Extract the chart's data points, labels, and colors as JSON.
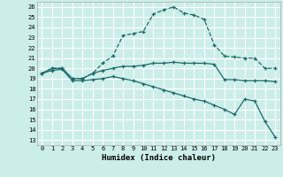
{
  "xlabel": "Humidex (Indice chaleur)",
  "bg_color": "#cceee8",
  "grid_color": "#ffffff",
  "line_color": "#1a6b6b",
  "xlim": [
    -0.5,
    23.5
  ],
  "ylim": [
    12.5,
    26.5
  ],
  "xticks": [
    0,
    1,
    2,
    3,
    4,
    5,
    6,
    7,
    8,
    9,
    10,
    11,
    12,
    13,
    14,
    15,
    16,
    17,
    18,
    19,
    20,
    21,
    22,
    23
  ],
  "yticks": [
    13,
    14,
    15,
    16,
    17,
    18,
    19,
    20,
    21,
    22,
    23,
    24,
    25,
    26
  ],
  "curve1_x": [
    0,
    1,
    2,
    3,
    4,
    5,
    6,
    7,
    8,
    9,
    10,
    11,
    12,
    13,
    14,
    15,
    16,
    17,
    18,
    19,
    20,
    21,
    22,
    23
  ],
  "curve1_y": [
    19.5,
    20.0,
    20.0,
    19.0,
    19.0,
    19.5,
    20.5,
    21.2,
    23.2,
    23.4,
    23.6,
    25.3,
    25.7,
    26.0,
    25.4,
    25.2,
    24.8,
    22.3,
    21.2,
    21.1,
    21.0,
    21.0,
    20.0,
    20.0
  ],
  "curve2_x": [
    0,
    1,
    2,
    3,
    4,
    5,
    6,
    7,
    8,
    9,
    10,
    11,
    12,
    13,
    14,
    15,
    16,
    17,
    18,
    19,
    20,
    21,
    22,
    23
  ],
  "curve2_y": [
    19.5,
    20.0,
    20.0,
    19.0,
    19.0,
    19.5,
    19.8,
    20.0,
    20.2,
    20.2,
    20.3,
    20.5,
    20.5,
    20.6,
    20.5,
    20.5,
    20.5,
    20.4,
    18.9,
    18.9,
    18.8,
    18.8,
    18.8,
    18.7
  ],
  "curve3_x": [
    0,
    1,
    2,
    3,
    4,
    5,
    6,
    7,
    8,
    9,
    10,
    11,
    12,
    13,
    14,
    15,
    16,
    17,
    18,
    19,
    20,
    21,
    22,
    23
  ],
  "curve3_y": [
    19.5,
    19.8,
    19.9,
    18.8,
    18.8,
    18.9,
    19.0,
    19.2,
    19.0,
    18.8,
    18.5,
    18.2,
    17.9,
    17.6,
    17.3,
    17.0,
    16.8,
    16.4,
    16.0,
    15.5,
    17.0,
    16.8,
    14.8,
    13.3
  ]
}
